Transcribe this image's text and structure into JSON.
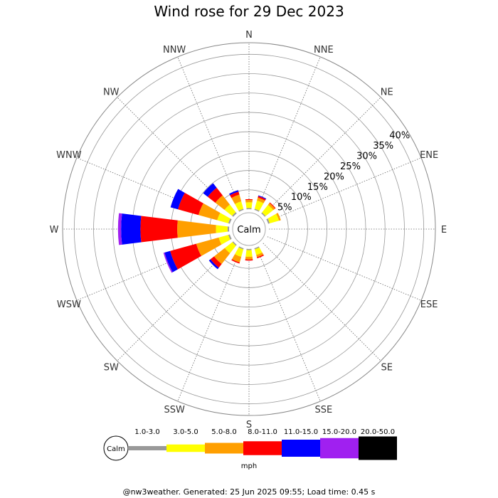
{
  "chart_data": {
    "type": "wind-rose",
    "title": "Wind rose for 29 Dec 2023",
    "directions": [
      "N",
      "NNE",
      "NE",
      "ENE",
      "E",
      "ESE",
      "SE",
      "SSE",
      "S",
      "SSW",
      "SW",
      "WSW",
      "W",
      "WNW",
      "NW",
      "NNW"
    ],
    "ring_labels": [
      "5%",
      "10%",
      "15%",
      "20%",
      "25%",
      "30%",
      "35%",
      "40%"
    ],
    "rmax_percent": 43,
    "calm_label": "Calm",
    "unit": "mph",
    "bins": [
      {
        "label": "1.0-3.0",
        "color": "#999999"
      },
      {
        "label": "3.0-5.0",
        "color": "#ffff00"
      },
      {
        "label": "5.0-8.0",
        "color": "#ff9f00"
      },
      {
        "label": "8.0-11.0",
        "color": "#ff0000"
      },
      {
        "label": "11.0-15.0",
        "color": "#0000ff"
      },
      {
        "label": "15.0-20.0",
        "color": "#a020f0"
      },
      {
        "label": "20.0-50.0",
        "color": "#000000"
      }
    ],
    "series": [
      {
        "direction": "N",
        "values": [
          0.3,
          1.5,
          0.6,
          0.2,
          0,
          0,
          0
        ]
      },
      {
        "direction": "NNE",
        "values": [
          0.3,
          2.2,
          0.8,
          0.4,
          0.2,
          0,
          0
        ]
      },
      {
        "direction": "NE",
        "values": [
          0.3,
          2.5,
          0.6,
          0.2,
          0,
          0,
          0
        ]
      },
      {
        "direction": "ENE",
        "values": [
          0.4,
          2.5,
          0.5,
          0,
          0,
          0,
          0
        ]
      },
      {
        "direction": "E",
        "values": [
          0,
          0,
          0,
          0,
          0,
          0,
          0
        ]
      },
      {
        "direction": "ESE",
        "values": [
          0,
          0,
          0,
          0,
          0,
          0,
          0
        ]
      },
      {
        "direction": "SE",
        "values": [
          0,
          0,
          0,
          0,
          0,
          0,
          0
        ]
      },
      {
        "direction": "SSE",
        "values": [
          0.3,
          1.5,
          0.6,
          0.3,
          0,
          0,
          0
        ]
      },
      {
        "direction": "S",
        "values": [
          0.3,
          1.7,
          0.7,
          0.3,
          0,
          0,
          0
        ]
      },
      {
        "direction": "SSW",
        "values": [
          0.3,
          2.0,
          1.5,
          0.3,
          0,
          0,
          0
        ]
      },
      {
        "direction": "SW",
        "values": [
          0.3,
          2.5,
          3.5,
          1.2,
          0.5,
          0,
          0
        ]
      },
      {
        "direction": "WSW",
        "values": [
          0.4,
          2.6,
          6.0,
          7.0,
          1.5,
          0.3,
          0
        ]
      },
      {
        "direction": "W",
        "values": [
          0.4,
          3.0,
          10.0,
          9.5,
          5.0,
          0.8,
          0
        ]
      },
      {
        "direction": "WNW",
        "values": [
          0.4,
          3.0,
          5.0,
          5.5,
          2.0,
          0,
          0
        ]
      },
      {
        "direction": "NW",
        "values": [
          0.4,
          2.5,
          3.0,
          2.5,
          1.5,
          0,
          0
        ]
      },
      {
        "direction": "NNW",
        "values": [
          0.3,
          2.0,
          1.8,
          0.8,
          0.4,
          0,
          0
        ]
      }
    ]
  },
  "footer": "@nw3weather. Generated: 25 Jun 2025 09:55; Load time: 0.45 s"
}
